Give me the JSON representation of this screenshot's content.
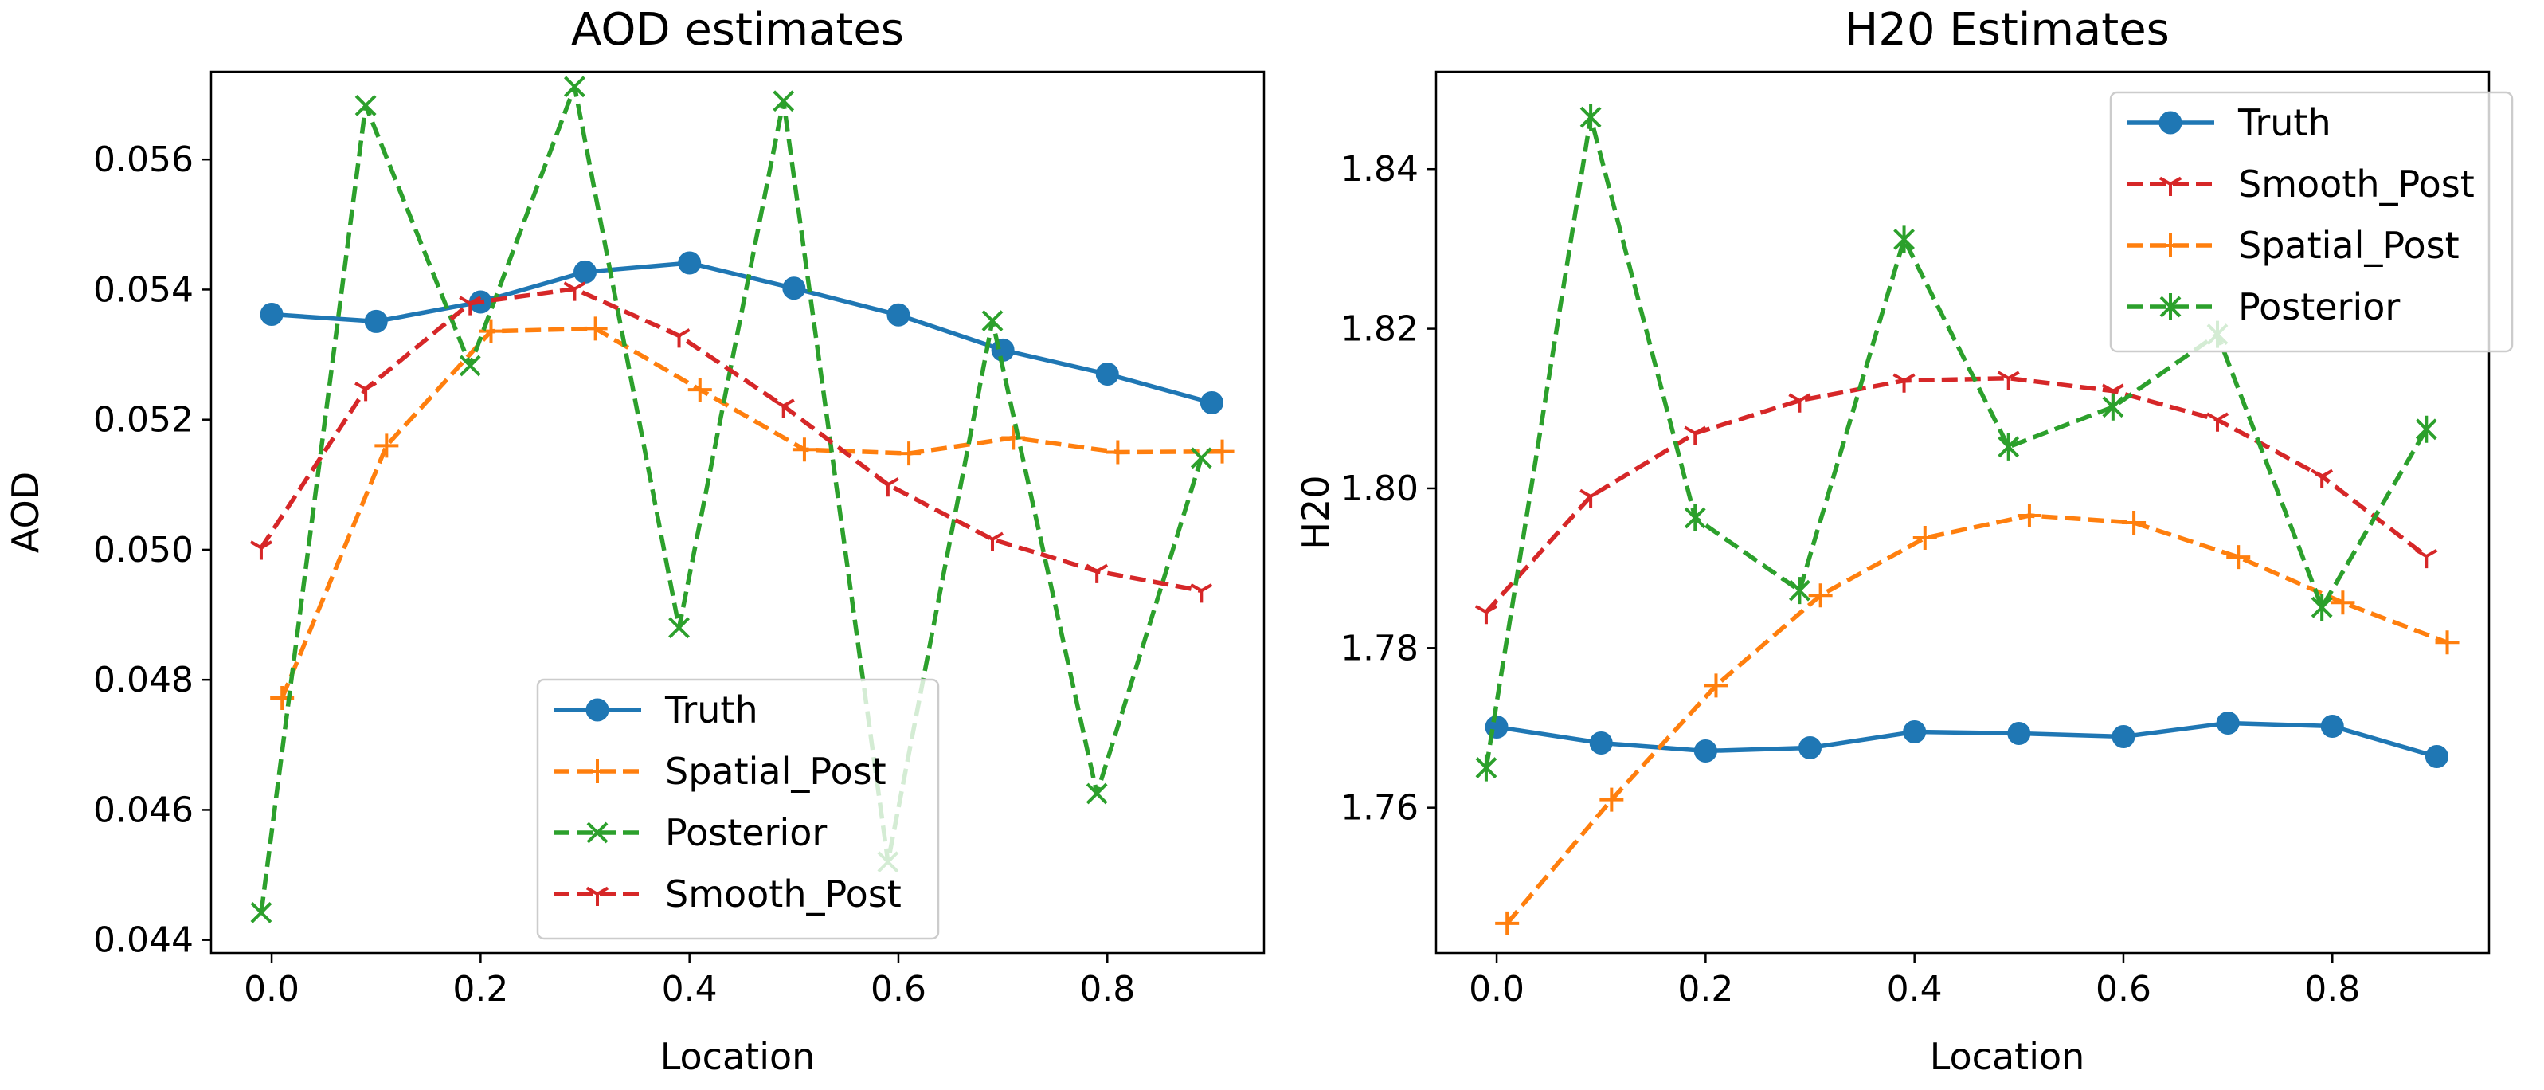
{
  "colors": {
    "truth": "#1f77b4",
    "spatial_post": "#ff7f0e",
    "posterior": "#2ca02c",
    "smooth_post": "#d62728"
  },
  "chart_data": [
    {
      "type": "line",
      "title": "AOD estimates",
      "xlabel": "Location",
      "ylabel": "AOD",
      "xlim": [
        -0.058,
        0.95
      ],
      "ylim": [
        0.0438,
        0.05735
      ],
      "xticks": [
        0.0,
        0.2,
        0.4,
        0.6,
        0.8
      ],
      "xtick_labels": [
        "0.0",
        "0.2",
        "0.4",
        "0.6",
        "0.8"
      ],
      "yticks": [
        0.044,
        0.046,
        0.048,
        0.05,
        0.052,
        0.054,
        0.056
      ],
      "ytick_labels": [
        "0.044",
        "0.046",
        "0.048",
        "0.050",
        "0.052",
        "0.054",
        "0.056"
      ],
      "legend_position": "lower-center",
      "legend": [
        "Truth",
        "Spatial_Post",
        "Posterior",
        "Smooth_Post"
      ],
      "series": [
        {
          "name": "Truth",
          "key": "truth",
          "style": "solid",
          "marker": "circle",
          "x": [
            0.0,
            0.1,
            0.2,
            0.3,
            0.4,
            0.5,
            0.6,
            0.7,
            0.8,
            0.9
          ],
          "y": [
            0.05362,
            0.05351,
            0.05381,
            0.05427,
            0.05441,
            0.05402,
            0.05361,
            0.05307,
            0.0527,
            0.05226
          ]
        },
        {
          "name": "Spatial_Post",
          "key": "spatial_post",
          "style": "dashed",
          "marker": "plus",
          "x": [
            0.01,
            0.11,
            0.21,
            0.31,
            0.41,
            0.51,
            0.61,
            0.71,
            0.81,
            0.91
          ],
          "y": [
            0.04772,
            0.0516,
            0.05336,
            0.0534,
            0.05246,
            0.05154,
            0.05148,
            0.05172,
            0.0515,
            0.05151
          ]
        },
        {
          "name": "Posterior",
          "key": "posterior",
          "style": "dashed",
          "marker": "x",
          "x": [
            -0.01,
            0.09,
            0.19,
            0.29,
            0.39,
            0.49,
            0.59,
            0.69,
            0.79,
            0.89
          ],
          "y": [
            0.04442,
            0.05683,
            0.05283,
            0.05712,
            0.0488,
            0.0569,
            0.0452,
            0.05352,
            0.04625,
            0.05141
          ]
        },
        {
          "name": "Smooth_Post",
          "key": "smooth_post",
          "style": "dashed",
          "marker": "tri_down",
          "x": [
            -0.01,
            0.09,
            0.19,
            0.29,
            0.39,
            0.49,
            0.59,
            0.69,
            0.79,
            0.89
          ],
          "y": [
            0.05003,
            0.05247,
            0.05379,
            0.05401,
            0.05329,
            0.05221,
            0.051,
            0.05016,
            0.04967,
            0.04937
          ]
        }
      ]
    },
    {
      "type": "line",
      "title": "H20 Estimates",
      "xlabel": "Location",
      "ylabel": "H20",
      "xlim": [
        -0.058,
        0.95
      ],
      "ylim": [
        1.7418,
        1.8522
      ],
      "xticks": [
        0.0,
        0.2,
        0.4,
        0.6,
        0.8
      ],
      "xtick_labels": [
        "0.0",
        "0.2",
        "0.4",
        "0.6",
        "0.8"
      ],
      "yticks": [
        1.76,
        1.78,
        1.8,
        1.82,
        1.84
      ],
      "ytick_labels": [
        "1.76",
        "1.78",
        "1.80",
        "1.82",
        "1.84"
      ],
      "legend_position": "upper-right",
      "legend": [
        "Truth",
        "Smooth_Post",
        "Spatial_Post",
        "Posterior"
      ],
      "series": [
        {
          "name": "Truth",
          "key": "truth",
          "style": "solid",
          "marker": "circle",
          "x": [
            0.0,
            0.1,
            0.2,
            0.3,
            0.4,
            0.5,
            0.6,
            0.7,
            0.8,
            0.9
          ],
          "y": [
            1.7701,
            1.7681,
            1.7671,
            1.7675,
            1.7695,
            1.7693,
            1.7689,
            1.7706,
            1.7702,
            1.7664
          ]
        },
        {
          "name": "Smooth_Post",
          "key": "smooth_post",
          "style": "dashed",
          "marker": "tri_down",
          "x": [
            -0.01,
            0.09,
            0.19,
            0.29,
            0.39,
            0.49,
            0.59,
            0.69,
            0.79,
            0.89
          ],
          "y": [
            1.7845,
            1.799,
            1.8069,
            1.811,
            1.8135,
            1.8138,
            1.8122,
            1.8086,
            1.8015,
            1.7915
          ]
        },
        {
          "name": "Spatial_Post",
          "key": "spatial_post",
          "style": "dashed",
          "marker": "plus",
          "x": [
            0.01,
            0.11,
            0.21,
            0.31,
            0.41,
            0.51,
            0.61,
            0.71,
            0.81,
            0.91
          ],
          "y": [
            1.7455,
            1.761,
            1.7753,
            1.7866,
            1.7938,
            1.7966,
            1.7957,
            1.7914,
            1.7857,
            1.7807
          ]
        },
        {
          "name": "Posterior",
          "key": "posterior",
          "style": "dashed",
          "marker": "x_bar",
          "x": [
            -0.01,
            0.09,
            0.19,
            0.29,
            0.39,
            0.49,
            0.59,
            0.69,
            0.79,
            0.89
          ],
          "y": [
            1.765,
            1.8465,
            1.7963,
            1.7872,
            1.8312,
            1.8052,
            1.8102,
            1.8193,
            1.7851,
            1.8074
          ]
        }
      ]
    }
  ]
}
